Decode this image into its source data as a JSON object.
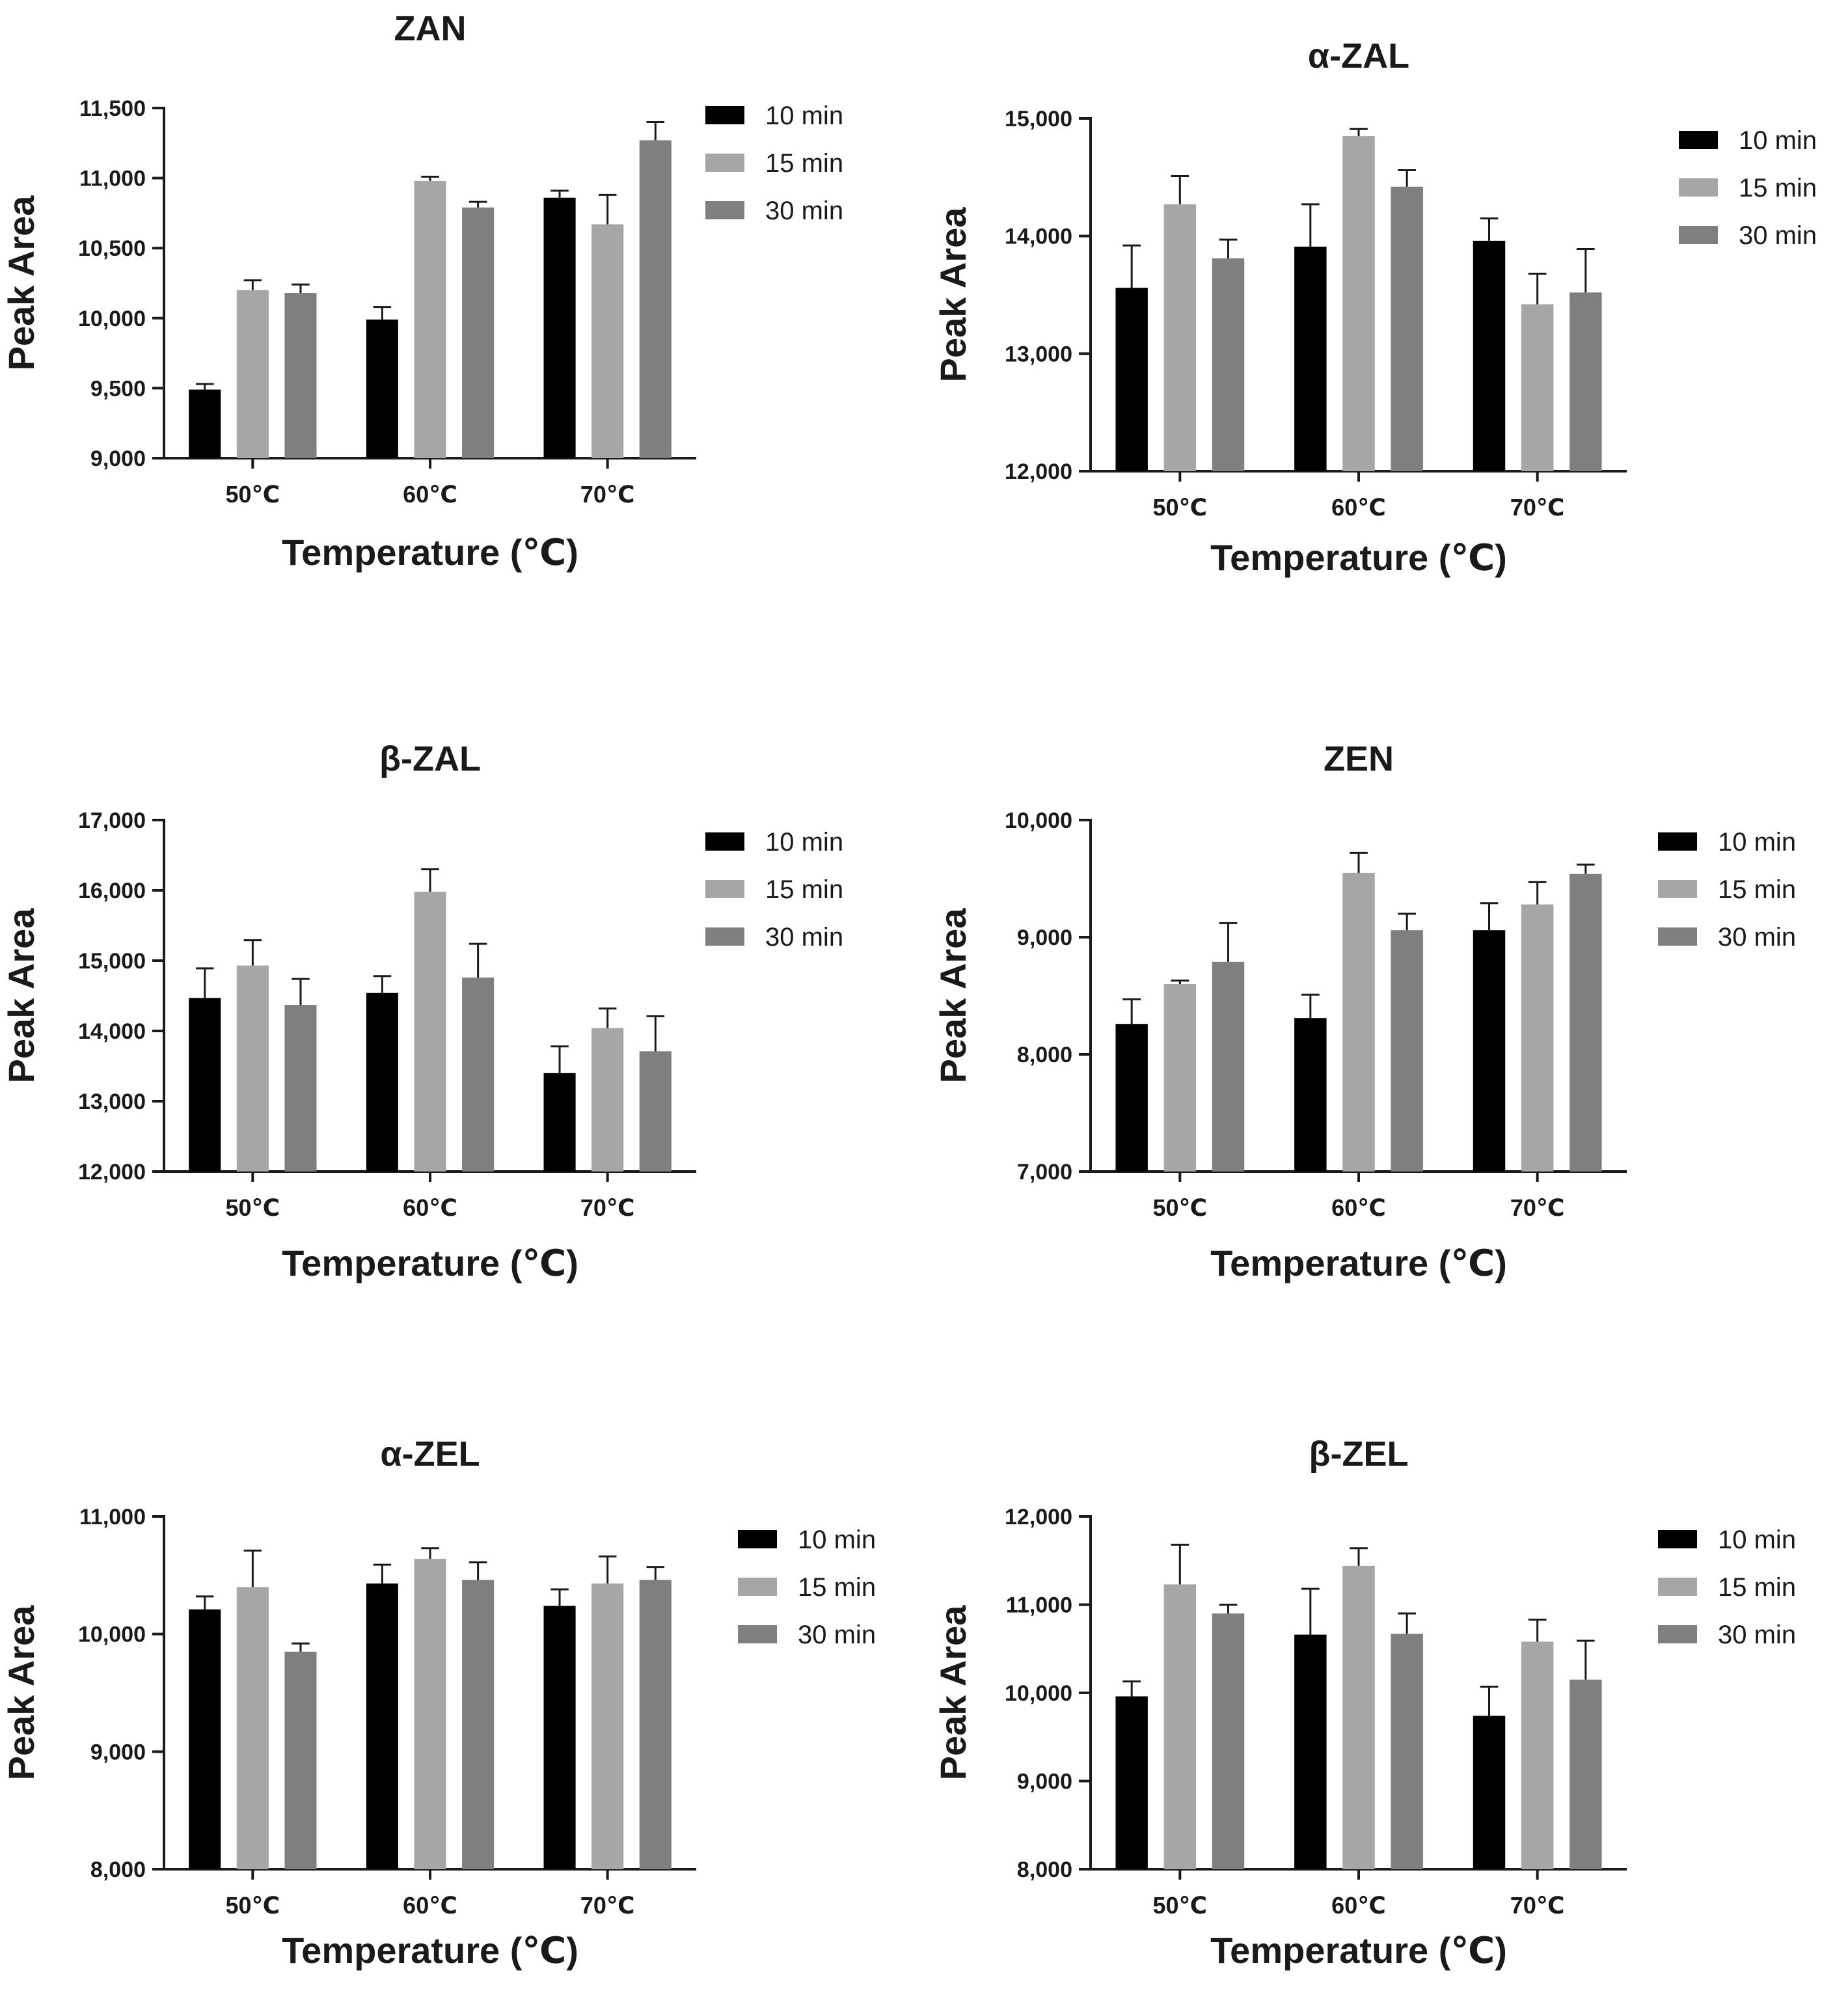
{
  "chart_data": [
    {
      "type": "bar",
      "title": "ZAN",
      "xlabel": "Temperature (℃)",
      "ylabel": "Peak Area",
      "categories": [
        "50℃",
        "60℃",
        "70℃"
      ],
      "ylim": [
        9000,
        11500
      ],
      "yticks": [
        9000,
        9500,
        10000,
        10500,
        11000,
        11500
      ],
      "ytick_labels": [
        "9,000",
        "9,500",
        "10,000",
        "10,500",
        "11,000",
        "11,500"
      ],
      "legend_position": "right",
      "series": [
        {
          "name": "10 min",
          "values": [
            9490,
            9990,
            10860
          ],
          "errors": [
            40,
            90,
            50
          ]
        },
        {
          "name": "15 min",
          "values": [
            10200,
            10980,
            10670
          ],
          "errors": [
            70,
            30,
            210
          ]
        },
        {
          "name": "30 min",
          "values": [
            10180,
            10790,
            11270
          ],
          "errors": [
            60,
            40,
            130
          ]
        }
      ]
    },
    {
      "type": "bar",
      "title": "α-ZAL",
      "xlabel": "Temperature (℃)",
      "ylabel": "Peak Area",
      "categories": [
        "50℃",
        "60℃",
        "70℃"
      ],
      "ylim": [
        12000,
        15000
      ],
      "yticks": [
        12000,
        13000,
        14000,
        15000
      ],
      "ytick_labels": [
        "12,000",
        "13,000",
        "14,000",
        "15,000"
      ],
      "legend_position": "right",
      "series": [
        {
          "name": "10 min",
          "values": [
            13560,
            13910,
            13960
          ],
          "errors": [
            360,
            360,
            190
          ]
        },
        {
          "name": "15 min",
          "values": [
            14270,
            14850,
            13420
          ],
          "errors": [
            240,
            60,
            260
          ]
        },
        {
          "name": "30 min",
          "values": [
            13810,
            14420,
            13520
          ],
          "errors": [
            160,
            140,
            370
          ]
        }
      ]
    },
    {
      "type": "bar",
      "title": "β-ZAL",
      "xlabel": "Temperature (℃)",
      "ylabel": "Peak Area",
      "categories": [
        "50℃",
        "60℃",
        "70℃"
      ],
      "ylim": [
        12000,
        17000
      ],
      "yticks": [
        12000,
        13000,
        14000,
        15000,
        16000,
        17000
      ],
      "ytick_labels": [
        "12,000",
        "13,000",
        "14,000",
        "15,000",
        "16,000",
        "17,000"
      ],
      "legend_position": "right",
      "series": [
        {
          "name": "10 min",
          "values": [
            14470,
            14540,
            13400
          ],
          "errors": [
            420,
            240,
            380
          ]
        },
        {
          "name": "15 min",
          "values": [
            14930,
            15980,
            14040
          ],
          "errors": [
            360,
            320,
            280
          ]
        },
        {
          "name": "30 min",
          "values": [
            14370,
            14760,
            13710
          ],
          "errors": [
            370,
            480,
            500
          ]
        }
      ]
    },
    {
      "type": "bar",
      "title": "ZEN",
      "xlabel": "Temperature (℃)",
      "ylabel": "Peak Area",
      "categories": [
        "50℃",
        "60℃",
        "70℃"
      ],
      "ylim": [
        7000,
        10000
      ],
      "yticks": [
        7000,
        8000,
        9000,
        10000
      ],
      "ytick_labels": [
        "7,000",
        "8,000",
        "9,000",
        "10,000"
      ],
      "legend_position": "right",
      "series": [
        {
          "name": "10 min",
          "values": [
            8260,
            8310,
            9060
          ],
          "errors": [
            210,
            200,
            230
          ]
        },
        {
          "name": "15 min",
          "values": [
            8600,
            9550,
            9280
          ],
          "errors": [
            30,
            170,
            190
          ]
        },
        {
          "name": "30 min",
          "values": [
            8790,
            9060,
            9540
          ],
          "errors": [
            330,
            140,
            80
          ]
        }
      ]
    },
    {
      "type": "bar",
      "title": "α-ZEL",
      "xlabel": "Temperature (℃)",
      "ylabel": "Peak Area",
      "categories": [
        "50℃",
        "60℃",
        "70℃"
      ],
      "ylim": [
        8000,
        11000
      ],
      "yticks": [
        8000,
        9000,
        10000,
        11000
      ],
      "ytick_labels": [
        "8,000",
        "9,000",
        "10,000",
        "11,000"
      ],
      "legend_position": "right",
      "series": [
        {
          "name": "10 min",
          "values": [
            10210,
            10430,
            10240
          ],
          "errors": [
            110,
            160,
            140
          ]
        },
        {
          "name": "15 min",
          "values": [
            10400,
            10640,
            10430
          ],
          "errors": [
            310,
            90,
            230
          ]
        },
        {
          "name": "30 min",
          "values": [
            9850,
            10460,
            10460
          ],
          "errors": [
            70,
            150,
            110
          ]
        }
      ]
    },
    {
      "type": "bar",
      "title": "β-ZEL",
      "xlabel": "Temperature (℃)",
      "ylabel": "Peak Area",
      "categories": [
        "50℃",
        "60℃",
        "70℃"
      ],
      "ylim": [
        8000,
        12000
      ],
      "yticks": [
        8000,
        9000,
        10000,
        11000,
        12000
      ],
      "ytick_labels": [
        "8,000",
        "9,000",
        "10,000",
        "11,000",
        "12,000"
      ],
      "legend_position": "right",
      "series": [
        {
          "name": "10 min",
          "values": [
            9960,
            10660,
            9740
          ],
          "errors": [
            170,
            520,
            330
          ]
        },
        {
          "name": "15 min",
          "values": [
            11230,
            11440,
            10580
          ],
          "errors": [
            450,
            200,
            250
          ]
        },
        {
          "name": "30 min",
          "values": [
            10900,
            10670,
            10150
          ],
          "errors": [
            100,
            230,
            440
          ]
        }
      ]
    }
  ],
  "colors": {
    "series": [
      "#000000",
      "#a6a6a6",
      "#7f7f7f"
    ],
    "axis": "#1a1a1a",
    "text": "#1a1a1a"
  }
}
